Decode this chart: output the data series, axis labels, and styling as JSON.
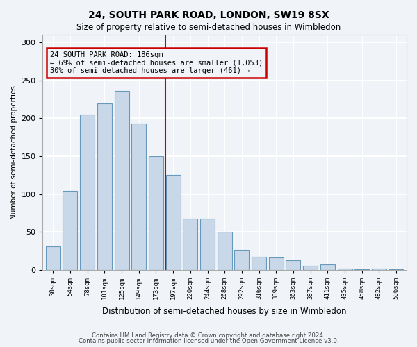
{
  "title1": "24, SOUTH PARK ROAD, LONDON, SW19 8SX",
  "title2": "Size of property relative to semi-detached houses in Wimbledon",
  "xlabel": "Distribution of semi-detached houses by size in Wimbledon",
  "ylabel": "Number of semi-detached properties",
  "categories": [
    "30sqm",
    "54sqm",
    "78sqm",
    "101sqm",
    "125sqm",
    "149sqm",
    "173sqm",
    "197sqm",
    "220sqm",
    "244sqm",
    "268sqm",
    "292sqm",
    "316sqm",
    "339sqm",
    "363sqm",
    "387sqm",
    "411sqm",
    "435sqm",
    "458sqm",
    "482sqm",
    "506sqm"
  ],
  "values": [
    31,
    104,
    205,
    219,
    236,
    193,
    150,
    125,
    68,
    68,
    50,
    26,
    17,
    16,
    13,
    5,
    7,
    2,
    1,
    2,
    1
  ],
  "bar_color": "#c8d8e8",
  "bar_edge_color": "#6699bb",
  "annotation_title": "24 SOUTH PARK ROAD: 186sqm",
  "annotation_line1": "← 69% of semi-detached houses are smaller (1,053)",
  "annotation_line2": "30% of semi-detached houses are larger (461) →",
  "annotation_box_color": "#cc0000",
  "vline_color": "#cc0000",
  "background_color": "#f0f4f8",
  "grid_color": "#ffffff",
  "footer1": "Contains HM Land Registry data © Crown copyright and database right 2024.",
  "footer2": "Contains public sector information licensed under the Open Government Licence v3.0.",
  "ylim": [
    0,
    310
  ],
  "yticks": [
    0,
    50,
    100,
    150,
    200,
    250,
    300
  ],
  "vline_x": 6.54
}
